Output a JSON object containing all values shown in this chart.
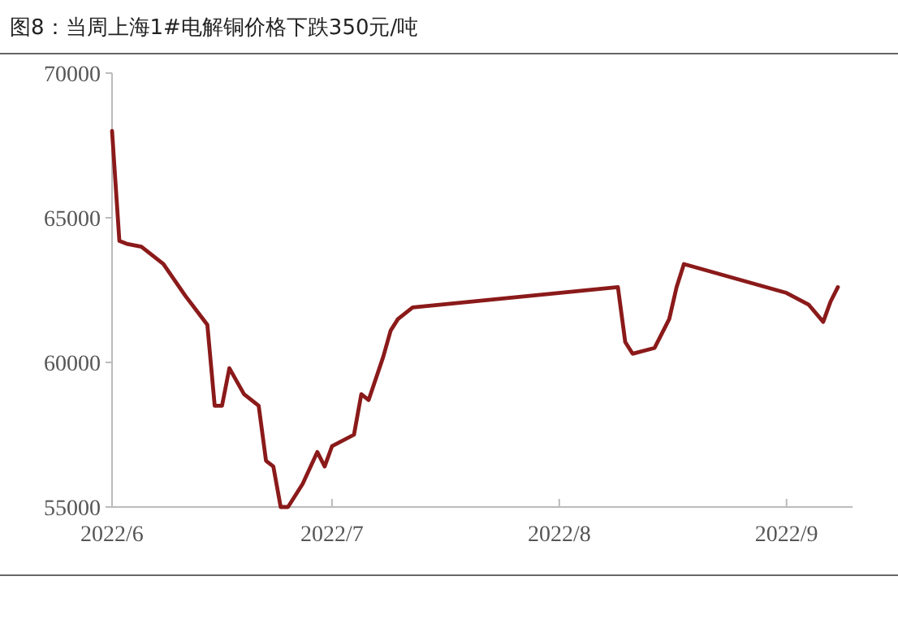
{
  "chart_data": {
    "type": "line",
    "title": "图8：当周上海1#电解铜价格下跌350元/吨",
    "x": [
      "2022-06-01",
      "2022-06-02",
      "2022-06-03",
      "2022-06-05",
      "2022-06-08",
      "2022-06-11",
      "2022-06-14",
      "2022-06-15",
      "2022-06-16",
      "2022-06-17",
      "2022-06-19",
      "2022-06-21",
      "2022-06-22",
      "2022-06-23",
      "2022-06-24",
      "2022-06-25",
      "2022-06-27",
      "2022-06-29",
      "2022-06-30",
      "2022-07-01",
      "2022-07-04",
      "2022-07-05",
      "2022-07-06",
      "2022-07-08",
      "2022-07-09",
      "2022-07-10",
      "2022-07-12",
      "2022-08-09",
      "2022-08-10",
      "2022-08-11",
      "2022-08-14",
      "2022-08-16",
      "2022-08-17",
      "2022-08-18",
      "2022-09-01",
      "2022-09-04",
      "2022-09-06",
      "2022-09-07",
      "2022-09-08"
    ],
    "series": [
      {
        "color": "#8b1a1a",
        "values": [
          68000,
          64200,
          64100,
          64000,
          63400,
          62300,
          61300,
          58500,
          58500,
          59800,
          58900,
          58500,
          56600,
          56400,
          55000,
          55000,
          55800,
          56900,
          56400,
          57100,
          57500,
          58900,
          58700,
          60200,
          61100,
          61500,
          61900,
          62600,
          60700,
          60300,
          60500,
          61500,
          62600,
          63400,
          62400,
          62000,
          61400,
          62100,
          62600
        ]
      }
    ],
    "xlim": [
      "2022-06-01",
      "2022-09-10"
    ],
    "xticks": [
      {
        "value": "2022-06-01",
        "label": "2022/6"
      },
      {
        "value": "2022-07-01",
        "label": "2022/7"
      },
      {
        "value": "2022-08-01",
        "label": "2022/8"
      },
      {
        "value": "2022-09-01",
        "label": "2022/9"
      }
    ],
    "ylim": [
      55000,
      70000
    ],
    "yticks": [
      55000,
      60000,
      65000,
      70000
    ],
    "grid": false,
    "marker": "none",
    "line_style": "solid"
  }
}
